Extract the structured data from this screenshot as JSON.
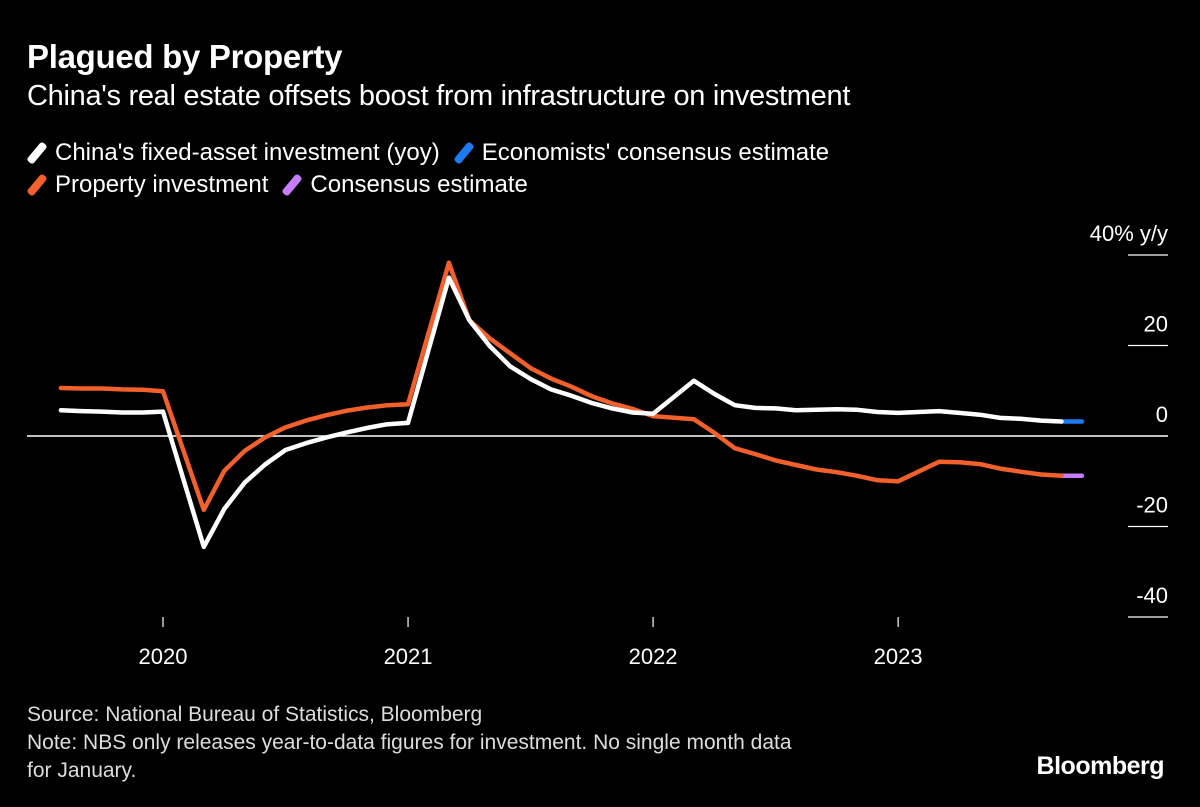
{
  "header": {
    "title": "Plagued by Property",
    "subtitle": "China's real estate offsets boost from infrastructure on investment"
  },
  "legend": [
    {
      "label": "China's fixed-asset investment (yoy)",
      "color": "#ffffff"
    },
    {
      "label": "Economists' consensus estimate",
      "color": "#1f7bf2"
    },
    {
      "label": "Property investment",
      "color": "#f2602b"
    },
    {
      "label": "Consensus estimate",
      "color": "#c77dff"
    }
  ],
  "footer": {
    "source": "Source: National Bureau of Statistics, Bloomberg",
    "note_line1": "Note: NBS only releases year-to-data figures for investment. No single month data",
    "note_line2": "for January.",
    "logo": "Bloomberg"
  },
  "chart_data": {
    "type": "line",
    "title": "Plagued by Property",
    "ylabel": "40% y/y",
    "ylim": [
      -40,
      40
    ],
    "yticks": [
      {
        "value": 40,
        "label": "40% y/y"
      },
      {
        "value": 20,
        "label": "20"
      },
      {
        "value": 0,
        "label": "0"
      },
      {
        "value": -20,
        "label": "-20"
      },
      {
        "value": -40,
        "label": "-40"
      }
    ],
    "xticks": [
      "2020",
      "2021",
      "2022",
      "2023"
    ],
    "grid": false,
    "legend_position": "top-left",
    "x": [
      "2019-07",
      "2019-08",
      "2019-09",
      "2019-10",
      "2019-11",
      "2019-12",
      "2020-02",
      "2020-03",
      "2020-04",
      "2020-05",
      "2020-06",
      "2020-07",
      "2020-08",
      "2020-09",
      "2020-10",
      "2020-11",
      "2020-12",
      "2021-02",
      "2021-03",
      "2021-04",
      "2021-05",
      "2021-06",
      "2021-07",
      "2021-08",
      "2021-09",
      "2021-10",
      "2021-11",
      "2021-12",
      "2022-02",
      "2022-03",
      "2022-04",
      "2022-05",
      "2022-06",
      "2022-07",
      "2022-08",
      "2022-09",
      "2022-10",
      "2022-11",
      "2022-12",
      "2023-02",
      "2023-03",
      "2023-04",
      "2023-05",
      "2023-06",
      "2023-07",
      "2023-08"
    ],
    "series": [
      {
        "name": "China's fixed-asset investment (yoy)",
        "color": "#ffffff",
        "values": [
          5.7,
          5.5,
          5.4,
          5.2,
          5.2,
          5.4,
          -24.5,
          -16.1,
          -10.3,
          -6.3,
          -3.1,
          -1.6,
          -0.3,
          0.8,
          1.8,
          2.6,
          2.9,
          35.0,
          25.6,
          19.9,
          15.4,
          12.6,
          10.3,
          8.9,
          7.3,
          6.1,
          5.2,
          4.9,
          12.2,
          9.3,
          6.8,
          6.2,
          6.1,
          5.7,
          5.8,
          5.9,
          5.8,
          5.3,
          5.1,
          5.5,
          5.1,
          4.7,
          4.0,
          3.8,
          3.4,
          3.2
        ]
      },
      {
        "name": "Property investment",
        "color": "#f2602b",
        "values": [
          10.6,
          10.5,
          10.5,
          10.3,
          10.2,
          9.9,
          -16.3,
          -7.7,
          -3.3,
          -0.3,
          1.9,
          3.4,
          4.6,
          5.6,
          6.3,
          6.8,
          7.0,
          38.3,
          25.6,
          21.6,
          18.3,
          15.0,
          12.7,
          10.9,
          8.8,
          7.2,
          6.0,
          4.4,
          3.7,
          0.7,
          -2.7,
          -4.0,
          -5.4,
          -6.4,
          -7.4,
          -8.0,
          -8.8,
          -9.8,
          -10.0,
          -5.7,
          -5.8,
          -6.2,
          -7.2,
          -7.9,
          -8.5,
          -8.8
        ]
      },
      {
        "name": "Economists' consensus estimate",
        "color": "#1f7bf2",
        "x": [
          "2023-08",
          "2023-09"
        ],
        "values": [
          3.2,
          3.2
        ]
      },
      {
        "name": "Consensus estimate",
        "color": "#c77dff",
        "x": [
          "2023-08",
          "2023-09"
        ],
        "values": [
          -8.8,
          -8.8
        ]
      }
    ]
  }
}
